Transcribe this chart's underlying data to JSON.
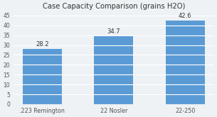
{
  "categories": [
    ".223 Remington",
    "22 Nosler",
    "22-250"
  ],
  "values": [
    28.2,
    34.7,
    42.6
  ],
  "bar_color": "#5B9BD5",
  "title": "Case Capacity Comparison (grains H2O)",
  "title_fontsize": 7.2,
  "ylim": [
    0,
    47
  ],
  "yticks": [
    0,
    5,
    10,
    15,
    20,
    25,
    30,
    35,
    40,
    45
  ],
  "label_fontsize": 6.0,
  "tick_fontsize": 5.5,
  "xtick_fontsize": 5.8,
  "background_color": "#eef2f5",
  "plot_bg_color": "#eef2f5",
  "grid_color": "#ffffff",
  "bar_width": 0.55
}
